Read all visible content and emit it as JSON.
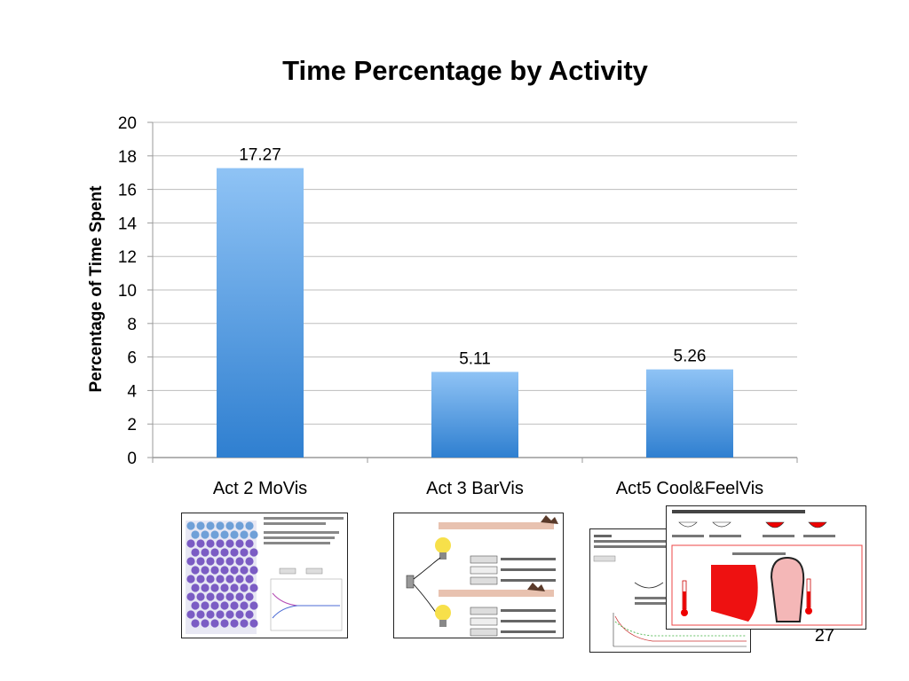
{
  "slide": {
    "title": "Time Percentage by Activity",
    "page_number": "27"
  },
  "chart_data": {
    "type": "bar",
    "title": "Time Percentage by Activity",
    "xlabel": "",
    "ylabel": "Percentage of Time Spent",
    "categories": [
      "Act 2 MoVis",
      "Act 3 BarVis",
      "Act5 Cool&FeelVis"
    ],
    "values": [
      17.27,
      5.11,
      5.26
    ],
    "data_labels": [
      "17.27",
      "5.11",
      "5.26"
    ],
    "ylim": [
      0,
      20
    ],
    "yticks": [
      0,
      2,
      4,
      6,
      8,
      10,
      12,
      14,
      16,
      18,
      20
    ],
    "grid": true,
    "bar_color_top": "#8fc3f5",
    "bar_color_bottom": "#2f7fd0"
  },
  "thumbnails": [
    {
      "name": "molecule-simulation-screenshot"
    },
    {
      "name": "heat-conduction-bulb-screenshot"
    },
    {
      "name": "cooling-curve-screenshot"
    },
    {
      "name": "touch-feel-thermometer-screenshot"
    }
  ]
}
